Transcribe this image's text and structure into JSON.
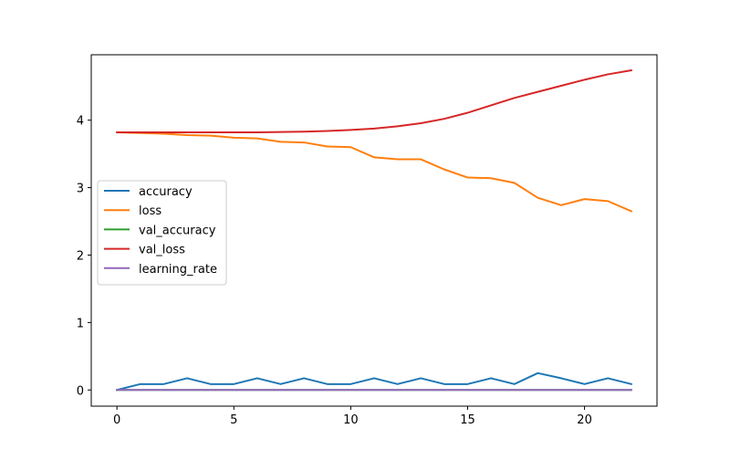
{
  "chart_data": {
    "type": "line",
    "title": "",
    "xlabel": "",
    "ylabel": "",
    "xlim": [
      -1.1,
      23.1
    ],
    "ylim": [
      -0.24,
      4.97
    ],
    "xticks": [
      0,
      5,
      10,
      15,
      20
    ],
    "yticks": [
      0,
      1,
      2,
      3,
      4
    ],
    "grid": false,
    "legend_position": "center-left",
    "x": [
      0,
      1,
      2,
      3,
      4,
      5,
      6,
      7,
      8,
      9,
      10,
      11,
      12,
      13,
      14,
      15,
      16,
      17,
      18,
      19,
      20,
      21,
      22
    ],
    "series": [
      {
        "name": "accuracy",
        "color": "#1f77b4",
        "values": [
          0.0,
          0.087,
          0.087,
          0.174,
          0.087,
          0.087,
          0.174,
          0.087,
          0.174,
          0.087,
          0.087,
          0.174,
          0.087,
          0.174,
          0.087,
          0.087,
          0.174,
          0.087,
          0.25,
          0.174,
          0.087,
          0.174,
          0.087
        ]
      },
      {
        "name": "loss",
        "color": "#ff7f0e",
        "values": [
          3.82,
          3.81,
          3.8,
          3.78,
          3.77,
          3.74,
          3.73,
          3.68,
          3.67,
          3.61,
          3.6,
          3.45,
          3.42,
          3.42,
          3.27,
          3.15,
          3.14,
          3.07,
          2.85,
          2.74,
          2.83,
          2.8,
          2.65
        ]
      },
      {
        "name": "val_accuracy",
        "color": "#2ca02c",
        "values": [
          0,
          0,
          0,
          0,
          0,
          0,
          0,
          0,
          0,
          0,
          0,
          0,
          0,
          0,
          0,
          0,
          0,
          0,
          0,
          0,
          0,
          0,
          0
        ]
      },
      {
        "name": "val_loss",
        "color": "#d62728",
        "values": [
          3.82,
          3.82,
          3.82,
          3.82,
          3.82,
          3.82,
          3.82,
          3.825,
          3.83,
          3.84,
          3.855,
          3.875,
          3.91,
          3.955,
          4.02,
          4.11,
          4.22,
          4.33,
          4.42,
          4.51,
          4.6,
          4.68,
          4.74
        ]
      },
      {
        "name": "learning_rate",
        "color": "#9467bd",
        "values": [
          0.001,
          0.001,
          0.001,
          0.001,
          0.001,
          0.001,
          0.001,
          0.001,
          0.001,
          0.001,
          0.001,
          0.001,
          0.001,
          0.001,
          0.001,
          0.001,
          0.001,
          0.001,
          0.001,
          0.001,
          0.001,
          0.001,
          0.001
        ]
      }
    ]
  }
}
